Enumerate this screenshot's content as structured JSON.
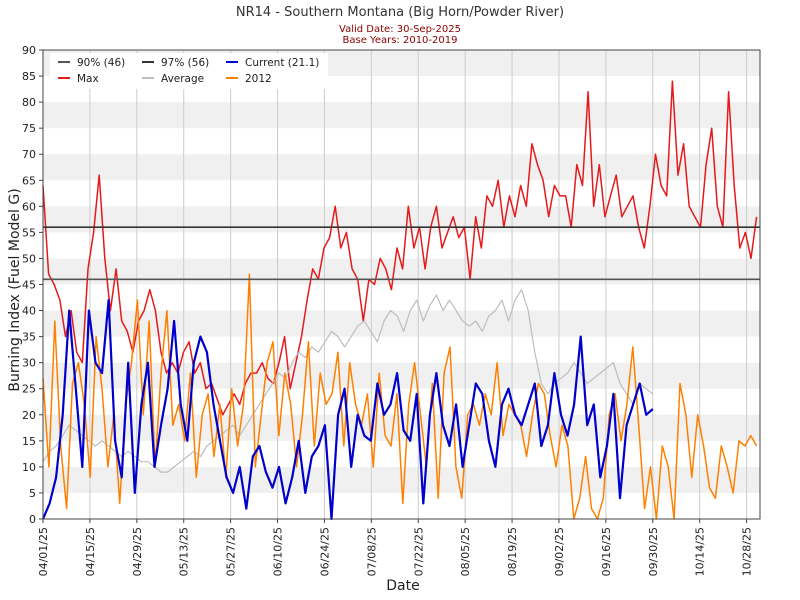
{
  "title": "NR14 - Southern Montana (Big Horn/Powder River)",
  "subtitle_line1": "Valid Date: 30-Sep-2025",
  "subtitle_line2": "Base Years: 2010-2019",
  "colors": {
    "title": "#333333",
    "subtitle": "#8b0000",
    "max": "#e41a1c",
    "average": "#bdbdbd",
    "current": "#0000cc",
    "y2012": "#ff8000",
    "p90": "#555555",
    "p97": "#333333",
    "band": "#f0f0f0",
    "grid": "#cccccc",
    "axis": "#444444"
  },
  "chart_data": {
    "type": "line",
    "xlabel": "Date",
    "ylabel": "Burning Index (Fuel Model G)",
    "ylim": [
      0,
      90
    ],
    "yticks": [
      0,
      5,
      10,
      15,
      20,
      25,
      30,
      35,
      40,
      45,
      50,
      55,
      60,
      65,
      70,
      75,
      80,
      85,
      90
    ],
    "x_start_doy": 91,
    "x_end_doy": 305,
    "xticks": [
      {
        "doy": 91,
        "label": "04/01/25"
      },
      {
        "doy": 105,
        "label": "04/15/25"
      },
      {
        "doy": 119,
        "label": "04/29/25"
      },
      {
        "doy": 133,
        "label": "05/13/25"
      },
      {
        "doy": 147,
        "label": "05/27/25"
      },
      {
        "doy": 161,
        "label": "06/10/25"
      },
      {
        "doy": 175,
        "label": "06/24/25"
      },
      {
        "doy": 189,
        "label": "07/08/25"
      },
      {
        "doy": 203,
        "label": "07/22/25"
      },
      {
        "doy": 217,
        "label": "08/05/25"
      },
      {
        "doy": 231,
        "label": "08/19/25"
      },
      {
        "doy": 245,
        "label": "09/02/25"
      },
      {
        "doy": 259,
        "label": "09/16/25"
      },
      {
        "doy": 273,
        "label": "09/30/25"
      },
      {
        "doy": 287,
        "label": "10/14/25"
      },
      {
        "doy": 301,
        "label": "10/28/25"
      }
    ],
    "legend": [
      {
        "key": "p90",
        "label": "90% (46)"
      },
      {
        "key": "p97",
        "label": "97% (56)"
      },
      {
        "key": "current",
        "label": "Current (21.1)"
      },
      {
        "key": "max",
        "label": "Max"
      },
      {
        "key": "average",
        "label": "Average"
      },
      {
        "key": "y2012",
        "label": "2012"
      }
    ],
    "hlines": [
      {
        "key": "p90",
        "name": "90th percentile",
        "value": 46
      },
      {
        "key": "p97",
        "name": "97th percentile",
        "value": 56
      }
    ],
    "series": [
      {
        "key": "max",
        "name": "Max",
        "start_doy": 91,
        "anchors": [
          64,
          47,
          45,
          42,
          35,
          40,
          32,
          30,
          48,
          55,
          66,
          50,
          40,
          48,
          38,
          36,
          32,
          38,
          40,
          44,
          40,
          32,
          28,
          30,
          28,
          32,
          34,
          28,
          30,
          25,
          26,
          23,
          20,
          22,
          24,
          22,
          26,
          28,
          28,
          30,
          27,
          26,
          30,
          35,
          25,
          30,
          35,
          42,
          48,
          46,
          52,
          54,
          60,
          52,
          55,
          48,
          46,
          38,
          46,
          45,
          50,
          48,
          44,
          52,
          48,
          60,
          52,
          56,
          48,
          56,
          60,
          52,
          55,
          58,
          54,
          56,
          46,
          58,
          52,
          62,
          60,
          65,
          56,
          62,
          58,
          64,
          60,
          72,
          68,
          65,
          58,
          64,
          62,
          62,
          56,
          68,
          64,
          82,
          60,
          68,
          58,
          62,
          66,
          58,
          60,
          62,
          56,
          52,
          60,
          70,
          64,
          62,
          84,
          66,
          72,
          60,
          58,
          56,
          68,
          75,
          60,
          56,
          82,
          64,
          52,
          55,
          50,
          58
        ]
      },
      {
        "key": "average",
        "name": "Average",
        "start_doy": 91,
        "anchors": [
          11,
          13,
          14,
          16,
          18,
          17,
          16,
          15,
          14,
          15,
          14,
          13,
          12,
          13,
          12,
          11,
          11,
          10,
          9,
          9,
          10,
          11,
          12,
          13,
          12,
          14,
          15,
          16,
          17,
          18,
          16,
          18,
          20,
          22,
          24,
          26,
          28,
          27,
          30,
          32,
          31,
          33,
          32,
          34,
          36,
          35,
          33,
          35,
          37,
          38,
          36,
          34,
          38,
          40,
          39,
          36,
          40,
          42,
          38,
          41,
          43,
          40,
          42,
          40,
          38,
          37,
          38,
          36,
          39,
          40,
          42,
          38,
          42,
          44,
          40,
          32,
          26,
          24,
          26,
          27,
          28,
          30,
          28,
          26,
          27,
          28,
          29,
          30,
          26,
          24,
          22,
          26,
          25,
          24
        ]
      },
      {
        "key": "current",
        "name": "Current (21.1)",
        "start_doy": 91,
        "anchors": [
          0,
          3,
          8,
          20,
          40,
          25,
          10,
          40,
          30,
          28,
          42,
          15,
          8,
          30,
          5,
          22,
          30,
          10,
          18,
          25,
          38,
          22,
          15,
          30,
          35,
          32,
          22,
          15,
          8,
          5,
          10,
          2,
          12,
          14,
          9,
          6,
          10,
          3,
          8,
          15,
          5,
          12,
          14,
          18,
          0,
          20,
          25,
          10,
          20,
          16,
          15,
          26,
          20,
          22,
          28,
          17,
          15,
          24,
          3,
          20,
          28,
          18,
          14,
          22,
          10,
          18,
          26,
          24,
          15,
          10,
          22,
          25,
          20,
          18,
          22,
          26,
          14,
          18,
          28,
          20,
          16,
          22,
          35,
          18,
          22,
          8,
          14,
          24,
          4,
          18,
          22,
          26,
          20,
          21.1
        ]
      },
      {
        "key": "y2012",
        "name": "2012",
        "start_doy": 91,
        "anchors": [
          27,
          10,
          38,
          14,
          2,
          26,
          30,
          22,
          8,
          35,
          25,
          10,
          20,
          3,
          22,
          30,
          42,
          20,
          38,
          10,
          28,
          40,
          18,
          22,
          15,
          28,
          8,
          20,
          24,
          12,
          22,
          8,
          25,
          14,
          22,
          47,
          10,
          20,
          30,
          34,
          16,
          28,
          22,
          10,
          20,
          34,
          14,
          28,
          22,
          24,
          32,
          14,
          30,
          22,
          18,
          24,
          10,
          28,
          16,
          14,
          24,
          3,
          22,
          30,
          20,
          10,
          26,
          4,
          28,
          33,
          10,
          4,
          20,
          22,
          18,
          24,
          20,
          30,
          16,
          22,
          20,
          18,
          12,
          20,
          26,
          24,
          16,
          10,
          18,
          14,
          0,
          4,
          12,
          2,
          0,
          4,
          20,
          24,
          15,
          22,
          33,
          18,
          2,
          10,
          0,
          14,
          10,
          0,
          26,
          20,
          8,
          20,
          14,
          6,
          4,
          14,
          10,
          5,
          15,
          14,
          16,
          14
        ]
      }
    ]
  }
}
